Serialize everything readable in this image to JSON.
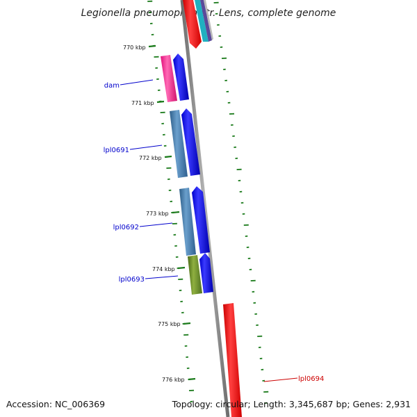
{
  "title": "Legionella pneumophila str. Lens, complete genome",
  "footer": {
    "accession": "Accession: NC_006369",
    "summary": "Topology: circular; Length: 3,345,687 bp; Genes: 2,931"
  },
  "kbp_ticks": [
    "770 kbp",
    "771 kbp",
    "772 kbp",
    "773 kbp",
    "774 kbp",
    "775 kbp",
    "776 kbp"
  ],
  "gene_labels": [
    {
      "text": "dam",
      "color": "#0000cc"
    },
    {
      "text": "lpl0691",
      "color": "#0000cc"
    },
    {
      "text": "lpl0692",
      "color": "#0000cc"
    },
    {
      "text": "lpl0693",
      "color": "#0000cc"
    },
    {
      "text": "lpl0694",
      "color": "#cc0000"
    }
  ],
  "colors": {
    "backbone": "#808080",
    "tick": "#1a7a1a",
    "forward_cds": "#0000ff",
    "reverse_cds": "#ff0000",
    "cog_magenta": "#ff1493",
    "cog_steelblue": "#4682b4",
    "cog_olive": "#6b8e23"
  }
}
